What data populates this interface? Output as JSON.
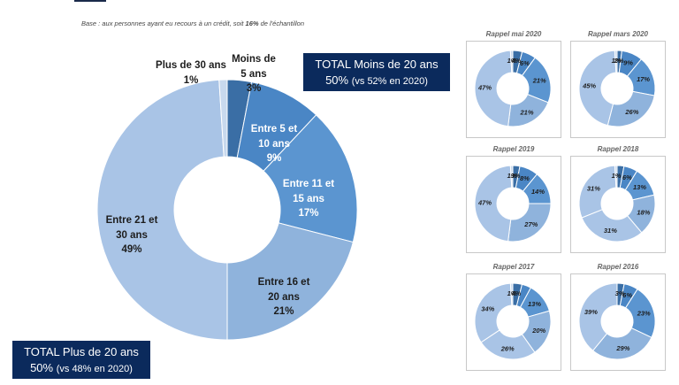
{
  "header": {
    "base_prefix": "Base : aux personnes ayant eu recours à un crédit, soit ",
    "base_pct": "16%",
    "base_suffix": " de l'échantillon"
  },
  "totals": {
    "moins20_title": "TOTAL Moins de 20 ans",
    "moins20_value": "50%",
    "moins20_note": "(vs 52% en 2020)",
    "plus20_title": "TOTAL Plus de 20 ans",
    "plus20_value": "50%",
    "plus20_note": "(vs 48% en 2020)"
  },
  "colors": {
    "darkest": "#3a6ea5",
    "dark": "#4a86c5",
    "medium": "#5b95d0",
    "light": "#8fb3dc",
    "lighter": "#a9c4e6",
    "pale": "#c8d9ee",
    "box": "#0b2a5c"
  },
  "chart_data": [
    {
      "type": "pie",
      "title": "",
      "categories": [
        "Moins de 5 ans",
        "Entre 5 et 10 ans",
        "Entre 11 et 15 ans",
        "Entre 16 et 20 ans",
        "Entre 21 et 30 ans",
        "Plus de 30 ans"
      ],
      "values": [
        3,
        9,
        17,
        21,
        49,
        1
      ],
      "labels": [
        [
          "Moins de",
          "5 ans",
          "3%"
        ],
        [
          "Entre 5 et",
          "10 ans",
          "9%"
        ],
        [
          "Entre 11 et",
          "15 ans",
          "17%"
        ],
        [
          "Entre 16 et",
          "20 ans",
          "21%"
        ],
        [
          "Entre 21 et",
          "30 ans",
          "49%"
        ],
        [
          "Plus de 30 ans",
          "1%"
        ]
      ]
    },
    {
      "type": "pie",
      "title": "Rappel mai 2020",
      "values": [
        4,
        6,
        21,
        21,
        47,
        1
      ],
      "labels": [
        "4%",
        "6%",
        "21%",
        "21%",
        "47%",
        "1%"
      ]
    },
    {
      "type": "pie",
      "title": "Rappel mars 2020",
      "values": [
        2,
        9,
        17,
        26,
        45,
        1
      ],
      "labels": [
        "2%",
        "9%",
        "17%",
        "26%",
        "45%",
        "1%"
      ]
    },
    {
      "type": "pie",
      "title": "Rappel 2019",
      "values": [
        3,
        8,
        14,
        27,
        47,
        1
      ],
      "labels": [
        "3%",
        "8%",
        "14%",
        "27%",
        "47%",
        "1%"
      ]
    },
    {
      "type": "pie",
      "title": "Rappel 2018",
      "values": [
        3,
        6,
        13,
        18,
        31,
        31,
        1
      ],
      "labels": [
        "",
        "6%",
        "13%",
        "18%",
        "31%",
        "31%",
        "1%"
      ]
    },
    {
      "type": "pie",
      "title": "Rappel 2017",
      "values": [
        4,
        4,
        13,
        20,
        26,
        34,
        1
      ],
      "labels": [
        "4%",
        "",
        "13%",
        "20%",
        "26%",
        "34%",
        "1%"
      ]
    },
    {
      "type": "pie",
      "title": "Rappel 2016",
      "values": [
        3,
        6,
        23,
        29,
        39
      ],
      "labels": [
        "3%",
        "6%",
        "23%",
        "29%",
        "39%"
      ]
    }
  ]
}
